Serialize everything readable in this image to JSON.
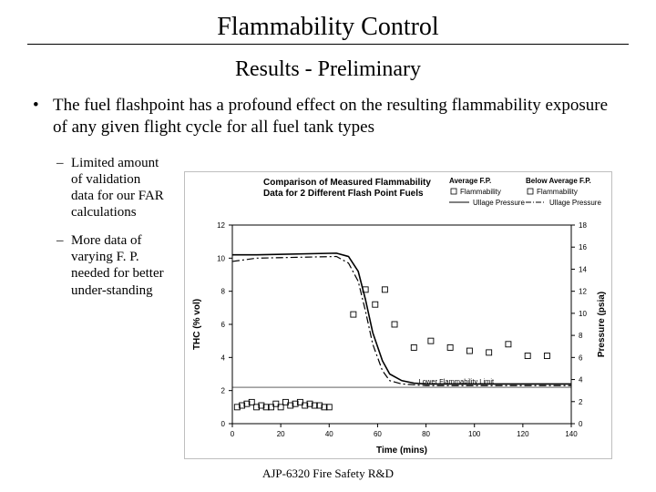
{
  "title": "Flammability Control",
  "subtitle": "Results - Preliminary",
  "bullet1": "The fuel flashpoint has a profound effect on the resulting flammability exposure of any given flight cycle for all fuel tank types",
  "sub1": "Limited amount of validation data for our FAR calculations",
  "sub2": "More data of varying F. P. needed for better under-standing",
  "footer": "AJP-6320 Fire Safety R&D",
  "chart": {
    "type": "dual-axis-line-scatter",
    "title": "Comparison of Measured Flammability Data for 2 Different Flash Point Fuels",
    "xlabel": "Time (mins)",
    "ylabel_left": "THC (% vol)",
    "ylabel_right": "Pressure (psia)",
    "legend": {
      "cols": [
        {
          "header": "Average F.P.",
          "marker": "square-open",
          "line": "solid",
          "label": "Ullage Pressure"
        },
        {
          "header": "Below Average F.P.",
          "marker": "square-open",
          "line": "dashdot",
          "label": "Ullage Pressure"
        },
        {
          "extra": "Flammability"
        }
      ]
    },
    "xlim": [
      0,
      140
    ],
    "xtick_step": 20,
    "ylim_left": [
      0,
      12
    ],
    "ytick_left_step": 2,
    "ylim_right": [
      0,
      18
    ],
    "ytick_right_step": 2,
    "lfl_label": "Lower Flammability Limit",
    "lfl_y": 2.2,
    "colors": {
      "background": "#ffffff",
      "border": "#bfbfbf",
      "axis": "#000000",
      "series": "#000000",
      "text": "#000000"
    },
    "fonts": {
      "title_size": 10,
      "label_size": 10,
      "tick_size": 8,
      "legend_size": 8
    },
    "pressure_solid": [
      [
        0,
        10.2
      ],
      [
        5,
        10.2
      ],
      [
        10,
        10.2
      ],
      [
        43,
        10.3
      ],
      [
        48,
        10.1
      ],
      [
        52,
        9.2
      ],
      [
        55,
        7.5
      ],
      [
        58,
        5.5
      ],
      [
        62,
        3.8
      ],
      [
        65,
        3.0
      ],
      [
        70,
        2.6
      ],
      [
        75,
        2.45
      ],
      [
        80,
        2.4
      ],
      [
        100,
        2.4
      ],
      [
        120,
        2.4
      ],
      [
        140,
        2.4
      ]
    ],
    "pressure_dashdot": [
      [
        0,
        9.8
      ],
      [
        5,
        9.9
      ],
      [
        10,
        10.0
      ],
      [
        43,
        10.1
      ],
      [
        48,
        9.7
      ],
      [
        52,
        8.6
      ],
      [
        55,
        6.8
      ],
      [
        58,
        4.8
      ],
      [
        62,
        3.2
      ],
      [
        65,
        2.6
      ],
      [
        70,
        2.4
      ],
      [
        75,
        2.35
      ],
      [
        80,
        2.3
      ],
      [
        100,
        2.3
      ],
      [
        120,
        2.3
      ],
      [
        140,
        2.3
      ]
    ],
    "scatter_avg": [
      [
        2,
        1.0
      ],
      [
        6,
        1.2
      ],
      [
        10,
        1.0
      ],
      [
        14,
        1.0
      ],
      [
        18,
        1.2
      ],
      [
        22,
        1.3
      ],
      [
        26,
        1.2
      ],
      [
        30,
        1.1
      ],
      [
        34,
        1.1
      ],
      [
        38,
        1.0
      ],
      [
        50,
        6.6
      ],
      [
        55,
        8.1
      ],
      [
        59,
        7.2
      ],
      [
        63,
        8.1
      ],
      [
        67,
        6.0
      ],
      [
        75,
        4.6
      ],
      [
        82,
        5.0
      ],
      [
        90,
        4.6
      ],
      [
        98,
        4.4
      ],
      [
        106,
        4.3
      ],
      [
        114,
        4.8
      ],
      [
        122,
        4.1
      ],
      [
        130,
        4.1
      ]
    ],
    "scatter_below": [
      [
        4,
        1.1
      ],
      [
        8,
        1.3
      ],
      [
        12,
        1.1
      ],
      [
        16,
        1.0
      ],
      [
        20,
        1.0
      ],
      [
        24,
        1.1
      ],
      [
        28,
        1.3
      ],
      [
        32,
        1.2
      ],
      [
        36,
        1.1
      ],
      [
        40,
        1.0
      ]
    ]
  }
}
